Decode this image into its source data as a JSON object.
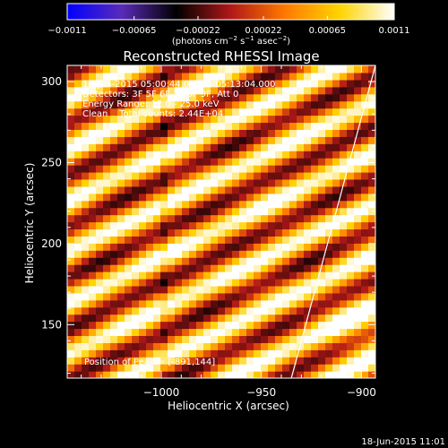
{
  "chart_data": {
    "type": "heatmap",
    "title": "Reconstructed RHESSI Image",
    "xlabel": "Heliocentric X (arcsec)",
    "ylabel": "Heliocentric Y (arcsec)",
    "xlim": [
      -1047,
      -893
    ],
    "ylim": [
      117,
      310
    ],
    "x_ticks": [
      -1000,
      -950,
      -900
    ],
    "x_tick_labels": [
      "−1000",
      "−950",
      "−900"
    ],
    "y_ticks": [
      150,
      200,
      250,
      300
    ],
    "y_tick_labels": [
      "150",
      "200",
      "250",
      "300"
    ],
    "colorbar": {
      "min": -0.0011,
      "max": 0.0011,
      "ticks": [
        -0.0011,
        -0.00065,
        -0.00022,
        0.00022,
        0.00065,
        0.0011
      ],
      "tick_labels": [
        "−0.0011",
        "−0.00065",
        "−0.00022",
        "0.00022",
        "0.00065",
        "0.0011"
      ],
      "units_text": "(photons cm",
      "units_sup1": "−2",
      "units_mid": " s",
      "units_sup2": "−1",
      "units_mid2": " asec",
      "units_sup3": "−2",
      "units_close": ")",
      "colors": [
        "#0000ff",
        "#5a2bb8",
        "#000000",
        "#b01818",
        "#ff7a00",
        "#ffd400",
        "#ffffff"
      ]
    },
    "annotations": [
      "17-Jun-2015 05:00:44.000 to 05:13:04.000",
      "Detectors: 3F 5F 6F 7F 8F 9F, Att 0",
      "Energy Range: 12.0 - 25.0 keV",
      "Clean    Total counts: 2.44E+04"
    ],
    "peak_label": "Position of Peak = [-891,144]",
    "peak": [
      -891,
      144
    ],
    "limb_line": [
      [
        -935,
        117
      ],
      [
        -893,
        310
      ]
    ],
    "grid": false
  },
  "timestamp": "18-Jun-2015 11:01"
}
